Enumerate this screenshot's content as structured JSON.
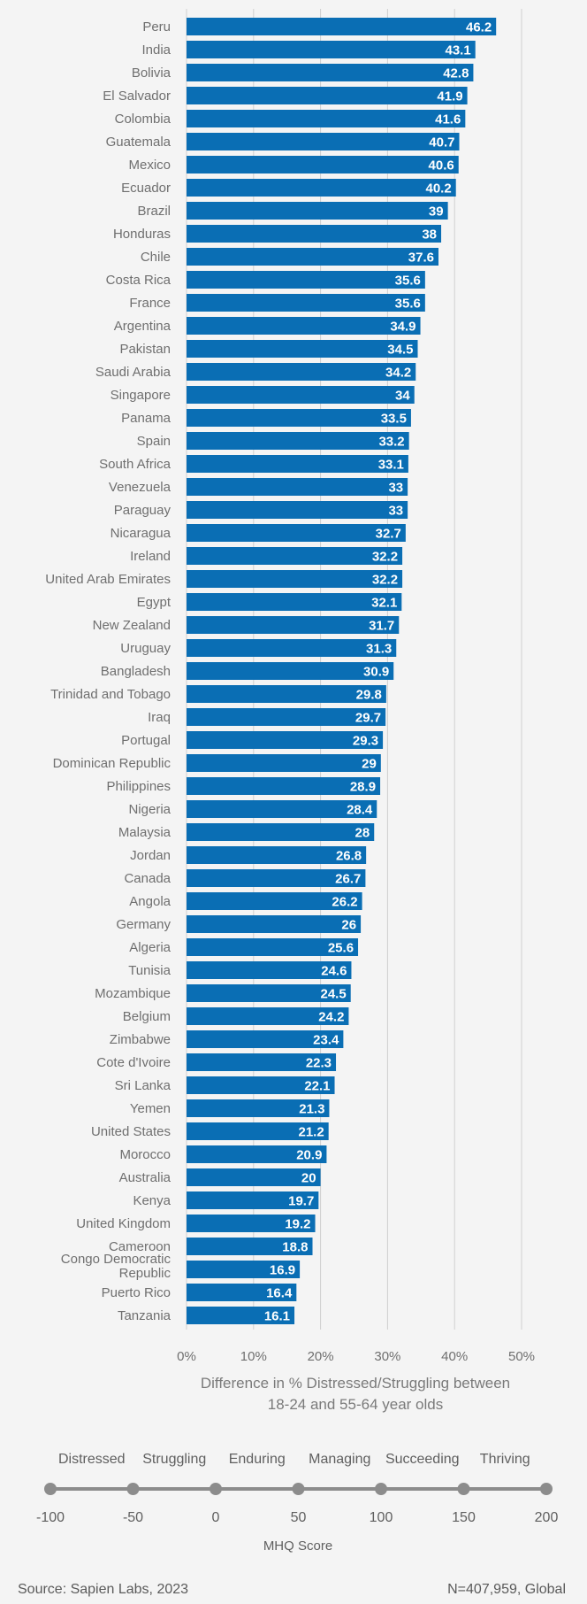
{
  "chart_data": {
    "type": "bar",
    "orientation": "horizontal",
    "categories": [
      "Peru",
      "India",
      "Bolivia",
      "El Salvador",
      "Colombia",
      "Guatemala",
      "Mexico",
      "Ecuador",
      "Brazil",
      "Honduras",
      "Chile",
      "Costa Rica",
      "France",
      "Argentina",
      "Pakistan",
      "Saudi Arabia",
      "Singapore",
      "Panama",
      "Spain",
      "South Africa",
      "Venezuela",
      "Paraguay",
      "Nicaragua",
      "Ireland",
      "United Arab Emirates",
      "Egypt",
      "New Zealand",
      "Uruguay",
      "Bangladesh",
      "Trinidad and Tobago",
      "Iraq",
      "Portugal",
      "Dominican Republic",
      "Philippines",
      "Nigeria",
      "Malaysia",
      "Jordan",
      "Canada",
      "Angola",
      "Germany",
      "Algeria",
      "Tunisia",
      "Mozambique",
      "Belgium",
      "Zimbabwe",
      "Cote d'Ivoire",
      "Sri Lanka",
      "Yemen",
      "United States",
      "Morocco",
      "Australia",
      "Kenya",
      "United Kingdom",
      "Cameroon",
      "Congo Democratic Republic",
      "Puerto Rico",
      "Tanzania"
    ],
    "values": [
      46.2,
      43.1,
      42.8,
      41.9,
      41.6,
      40.7,
      40.6,
      40.2,
      39,
      38,
      37.6,
      35.6,
      35.6,
      34.9,
      34.5,
      34.2,
      34,
      33.5,
      33.2,
      33.1,
      33,
      33,
      32.7,
      32.2,
      32.2,
      32.1,
      31.7,
      31.3,
      30.9,
      29.8,
      29.7,
      29.3,
      29,
      28.9,
      28.4,
      28,
      26.8,
      26.7,
      26.2,
      26,
      25.6,
      24.6,
      24.5,
      24.2,
      23.4,
      22.3,
      22.1,
      21.3,
      21.2,
      20.9,
      20,
      19.7,
      19.2,
      18.8,
      16.9,
      16.4,
      16.1
    ],
    "value_labels": [
      "46.2",
      "43.1",
      "42.8",
      "41.9",
      "41.6",
      "40.7",
      "40.6",
      "40.2",
      "39",
      "38",
      "37.6",
      "35.6",
      "35.6",
      "34.9",
      "34.5",
      "34.2",
      "34",
      "33.5",
      "33.2",
      "33.1",
      "33",
      "33",
      "32.7",
      "32.2",
      "32.2",
      "32.1",
      "31.7",
      "31.3",
      "30.9",
      "29.8",
      "29.7",
      "29.3",
      "29",
      "28.9",
      "28.4",
      "28",
      "26.8",
      "26.7",
      "26.2",
      "26",
      "25.6",
      "24.6",
      "24.5",
      "24.2",
      "23.4",
      "22.3",
      "22.1",
      "21.3",
      "21.2",
      "20.9",
      "20",
      "19.7",
      "19.2",
      "18.8",
      "16.9",
      "16.4",
      "16.1"
    ],
    "xlim": [
      0,
      50
    ],
    "xticks": [
      0,
      10,
      20,
      30,
      40,
      50
    ],
    "xtick_labels": [
      "0%",
      "10%",
      "20%",
      "30%",
      "40%",
      "50%"
    ],
    "xlabel_line1": "Difference in % Distressed/Struggling between",
    "xlabel_line2": "18-24 and 55-64 year olds",
    "grid": true,
    "bar_color": "#0a6eb4"
  },
  "mhq_scale": {
    "categories": [
      "Distressed",
      "Struggling",
      "Enduring",
      "Managing",
      "Succeeding",
      "Thriving"
    ],
    "ticks": [
      "-100",
      "-50",
      "0",
      "50",
      "100",
      "150",
      "200"
    ],
    "title": "MHQ Score",
    "line_color": "#8c8c8c"
  },
  "footer": {
    "source": "Source: Sapien Labs, 2023",
    "note": "N=407,959, Global"
  }
}
